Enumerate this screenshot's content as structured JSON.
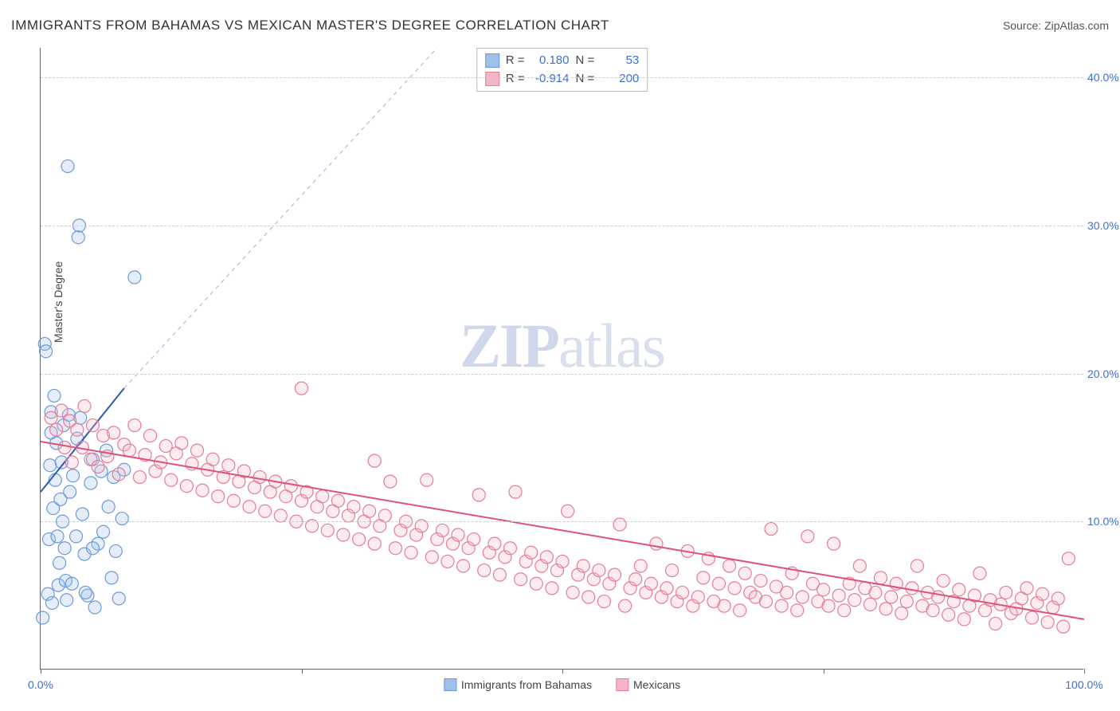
{
  "title": "IMMIGRANTS FROM BAHAMAS VS MEXICAN MASTER'S DEGREE CORRELATION CHART",
  "source_label": "Source: ",
  "source_link": "ZipAtlas.com",
  "ylabel": "Master's Degree",
  "watermark": {
    "zip": "ZIP",
    "atlas": "atlas"
  },
  "chart": {
    "type": "scatter",
    "xlim": [
      0,
      100
    ],
    "ylim": [
      0,
      42
    ],
    "ytick_step": 10,
    "ytick_labels": [
      "10.0%",
      "20.0%",
      "30.0%",
      "40.0%"
    ],
    "xtick_positions": [
      0,
      25,
      50,
      75,
      100
    ],
    "xtick_labels": {
      "0": "0.0%",
      "100": "100.0%"
    },
    "background_color": "#ffffff",
    "grid_color": "#cccccc",
    "point_radius": 8,
    "series": [
      {
        "name": "Immigrants from Bahamas",
        "color_fill": "#9fc0ea",
        "color_stroke": "#6a9bd8",
        "R": "0.180",
        "N": "53",
        "trend": {
          "x1": 0,
          "y1": 12,
          "x2": 8,
          "y2": 19,
          "dash_to_x": 50,
          "dash_to_y": 55
        },
        "points": [
          [
            0.2,
            3.5
          ],
          [
            0.4,
            22.0
          ],
          [
            0.5,
            21.5
          ],
          [
            0.7,
            5.1
          ],
          [
            0.8,
            8.8
          ],
          [
            0.9,
            13.8
          ],
          [
            1.0,
            16.0
          ],
          [
            1.0,
            17.4
          ],
          [
            1.1,
            4.5
          ],
          [
            1.2,
            10.9
          ],
          [
            1.3,
            18.5
          ],
          [
            1.4,
            12.8
          ],
          [
            1.5,
            15.3
          ],
          [
            1.6,
            9.0
          ],
          [
            1.7,
            5.7
          ],
          [
            1.8,
            7.2
          ],
          [
            1.9,
            11.5
          ],
          [
            2.0,
            14.0
          ],
          [
            2.1,
            10.0
          ],
          [
            2.2,
            16.5
          ],
          [
            2.3,
            8.2
          ],
          [
            2.4,
            6.0
          ],
          [
            2.5,
            4.7
          ],
          [
            2.6,
            34.0
          ],
          [
            2.8,
            12.0
          ],
          [
            3.0,
            5.8
          ],
          [
            3.1,
            13.1
          ],
          [
            3.4,
            9.0
          ],
          [
            3.5,
            15.6
          ],
          [
            3.6,
            29.2
          ],
          [
            3.7,
            30.0
          ],
          [
            3.8,
            17.0
          ],
          [
            4.0,
            10.5
          ],
          [
            4.2,
            7.8
          ],
          [
            4.5,
            5.0
          ],
          [
            4.8,
            12.6
          ],
          [
            5.0,
            14.2
          ],
          [
            5.2,
            4.2
          ],
          [
            5.5,
            8.5
          ],
          [
            5.8,
            13.4
          ],
          [
            6.0,
            9.3
          ],
          [
            6.3,
            14.8
          ],
          [
            6.5,
            11.0
          ],
          [
            6.8,
            6.2
          ],
          [
            7.0,
            13.0
          ],
          [
            7.2,
            8.0
          ],
          [
            7.5,
            4.8
          ],
          [
            7.8,
            10.2
          ],
          [
            8.0,
            13.5
          ],
          [
            9.0,
            26.5
          ],
          [
            5.0,
            8.2
          ],
          [
            4.3,
            5.2
          ],
          [
            2.7,
            17.2
          ]
        ]
      },
      {
        "name": "Mexicans",
        "color_fill": "#f4b6c6",
        "color_stroke": "#e77b9a",
        "R": "-0.914",
        "N": "200",
        "trend": {
          "x1": 0,
          "y1": 15.4,
          "x2": 100,
          "y2": 3.4
        },
        "points": [
          [
            1.0,
            17.0
          ],
          [
            1.5,
            16.2
          ],
          [
            2.0,
            17.5
          ],
          [
            2.3,
            15.0
          ],
          [
            2.8,
            16.8
          ],
          [
            3.0,
            14.0
          ],
          [
            3.5,
            16.2
          ],
          [
            4.0,
            15.0
          ],
          [
            4.2,
            17.8
          ],
          [
            4.8,
            14.2
          ],
          [
            5.0,
            16.5
          ],
          [
            5.5,
            13.7
          ],
          [
            6.0,
            15.8
          ],
          [
            6.4,
            14.4
          ],
          [
            7.0,
            16.0
          ],
          [
            7.5,
            13.2
          ],
          [
            8.0,
            15.2
          ],
          [
            8.5,
            14.8
          ],
          [
            9.0,
            16.5
          ],
          [
            9.5,
            13.0
          ],
          [
            10.0,
            14.5
          ],
          [
            10.5,
            15.8
          ],
          [
            11.0,
            13.4
          ],
          [
            11.5,
            14.0
          ],
          [
            12.0,
            15.1
          ],
          [
            12.5,
            12.8
          ],
          [
            13.0,
            14.6
          ],
          [
            13.5,
            15.3
          ],
          [
            14.0,
            12.4
          ],
          [
            14.5,
            13.9
          ],
          [
            15.0,
            14.8
          ],
          [
            15.5,
            12.1
          ],
          [
            16.0,
            13.5
          ],
          [
            16.5,
            14.2
          ],
          [
            17.0,
            11.7
          ],
          [
            17.5,
            13.0
          ],
          [
            18.0,
            13.8
          ],
          [
            18.5,
            11.4
          ],
          [
            19.0,
            12.7
          ],
          [
            19.5,
            13.4
          ],
          [
            20.0,
            11.0
          ],
          [
            20.5,
            12.3
          ],
          [
            21.0,
            13.0
          ],
          [
            21.5,
            10.7
          ],
          [
            22.0,
            12.0
          ],
          [
            22.5,
            12.7
          ],
          [
            23.0,
            10.4
          ],
          [
            23.5,
            11.7
          ],
          [
            24.0,
            12.4
          ],
          [
            24.5,
            10.0
          ],
          [
            25.0,
            19.0
          ],
          [
            25.0,
            11.4
          ],
          [
            25.5,
            12.0
          ],
          [
            26.0,
            9.7
          ],
          [
            26.5,
            11.0
          ],
          [
            27.0,
            11.7
          ],
          [
            27.5,
            9.4
          ],
          [
            28.0,
            10.7
          ],
          [
            28.5,
            11.4
          ],
          [
            29.0,
            9.1
          ],
          [
            29.5,
            10.4
          ],
          [
            30.0,
            11.0
          ],
          [
            30.5,
            8.8
          ],
          [
            31.0,
            10.0
          ],
          [
            31.5,
            10.7
          ],
          [
            32.0,
            14.1
          ],
          [
            32.0,
            8.5
          ],
          [
            32.5,
            9.7
          ],
          [
            33.0,
            10.4
          ],
          [
            33.5,
            12.7
          ],
          [
            34.0,
            8.2
          ],
          [
            34.5,
            9.4
          ],
          [
            35.0,
            10.0
          ],
          [
            35.5,
            7.9
          ],
          [
            36.0,
            9.1
          ],
          [
            36.5,
            9.7
          ],
          [
            37.0,
            12.8
          ],
          [
            37.5,
            7.6
          ],
          [
            38.0,
            8.8
          ],
          [
            38.5,
            9.4
          ],
          [
            39.0,
            7.3
          ],
          [
            39.5,
            8.5
          ],
          [
            40.0,
            9.1
          ],
          [
            40.5,
            7.0
          ],
          [
            41.0,
            8.2
          ],
          [
            41.5,
            8.8
          ],
          [
            42.0,
            11.8
          ],
          [
            42.5,
            6.7
          ],
          [
            43.0,
            7.9
          ],
          [
            43.5,
            8.5
          ],
          [
            44.0,
            6.4
          ],
          [
            44.5,
            7.6
          ],
          [
            45.0,
            8.2
          ],
          [
            45.5,
            12.0
          ],
          [
            46.0,
            6.1
          ],
          [
            46.5,
            7.3
          ],
          [
            47.0,
            7.9
          ],
          [
            47.5,
            5.8
          ],
          [
            48.0,
            7.0
          ],
          [
            48.5,
            7.6
          ],
          [
            49.0,
            5.5
          ],
          [
            49.5,
            6.7
          ],
          [
            50.0,
            7.3
          ],
          [
            50.5,
            10.7
          ],
          [
            51.0,
            5.2
          ],
          [
            51.5,
            6.4
          ],
          [
            52.0,
            7.0
          ],
          [
            52.5,
            4.9
          ],
          [
            53.0,
            6.1
          ],
          [
            53.5,
            6.7
          ],
          [
            54.0,
            4.6
          ],
          [
            54.5,
            5.8
          ],
          [
            55.0,
            6.4
          ],
          [
            55.5,
            9.8
          ],
          [
            56.0,
            4.3
          ],
          [
            56.5,
            5.5
          ],
          [
            57.0,
            6.1
          ],
          [
            57.5,
            7.0
          ],
          [
            58.0,
            5.2
          ],
          [
            58.5,
            5.8
          ],
          [
            59.0,
            8.5
          ],
          [
            59.5,
            4.9
          ],
          [
            60.0,
            5.5
          ],
          [
            60.5,
            6.7
          ],
          [
            61.0,
            4.6
          ],
          [
            61.5,
            5.2
          ],
          [
            62.0,
            8.0
          ],
          [
            62.5,
            4.3
          ],
          [
            63.0,
            4.9
          ],
          [
            63.5,
            6.2
          ],
          [
            64.0,
            7.5
          ],
          [
            64.5,
            4.6
          ],
          [
            65.0,
            5.8
          ],
          [
            65.5,
            4.3
          ],
          [
            66.0,
            7.0
          ],
          [
            66.5,
            5.5
          ],
          [
            67.0,
            4.0
          ],
          [
            67.5,
            6.5
          ],
          [
            68.0,
            5.2
          ],
          [
            68.5,
            4.9
          ],
          [
            69.0,
            6.0
          ],
          [
            69.5,
            4.6
          ],
          [
            70.0,
            9.5
          ],
          [
            70.5,
            5.6
          ],
          [
            71.0,
            4.3
          ],
          [
            71.5,
            5.2
          ],
          [
            72.0,
            6.5
          ],
          [
            72.5,
            4.0
          ],
          [
            73.0,
            4.9
          ],
          [
            73.5,
            9.0
          ],
          [
            74.0,
            5.8
          ],
          [
            74.5,
            4.6
          ],
          [
            75.0,
            5.4
          ],
          [
            75.5,
            4.3
          ],
          [
            76.0,
            8.5
          ],
          [
            76.5,
            5.0
          ],
          [
            77.0,
            4.0
          ],
          [
            77.5,
            5.8
          ],
          [
            78.0,
            4.7
          ],
          [
            78.5,
            7.0
          ],
          [
            79.0,
            5.5
          ],
          [
            79.5,
            4.4
          ],
          [
            80.0,
            5.2
          ],
          [
            80.5,
            6.2
          ],
          [
            81.0,
            4.1
          ],
          [
            81.5,
            4.9
          ],
          [
            82.0,
            5.8
          ],
          [
            82.5,
            3.8
          ],
          [
            83.0,
            4.6
          ],
          [
            83.5,
            5.5
          ],
          [
            84.0,
            7.0
          ],
          [
            84.5,
            4.3
          ],
          [
            85.0,
            5.2
          ],
          [
            85.5,
            4.0
          ],
          [
            86.0,
            4.9
          ],
          [
            86.5,
            6.0
          ],
          [
            87.0,
            3.7
          ],
          [
            87.5,
            4.6
          ],
          [
            88.0,
            5.4
          ],
          [
            88.5,
            3.4
          ],
          [
            89.0,
            4.3
          ],
          [
            89.5,
            5.0
          ],
          [
            90.0,
            6.5
          ],
          [
            90.5,
            4.0
          ],
          [
            91.0,
            4.7
          ],
          [
            91.5,
            3.1
          ],
          [
            92.0,
            4.4
          ],
          [
            92.5,
            5.2
          ],
          [
            93.0,
            3.8
          ],
          [
            93.5,
            4.1
          ],
          [
            94.0,
            4.8
          ],
          [
            94.5,
            5.5
          ],
          [
            95.0,
            3.5
          ],
          [
            95.5,
            4.5
          ],
          [
            96.0,
            5.1
          ],
          [
            96.5,
            3.2
          ],
          [
            97.0,
            4.2
          ],
          [
            97.5,
            4.8
          ],
          [
            98.0,
            2.9
          ],
          [
            98.5,
            7.5
          ]
        ]
      }
    ]
  },
  "stats_labels": {
    "R": "R =",
    "N": "N ="
  }
}
